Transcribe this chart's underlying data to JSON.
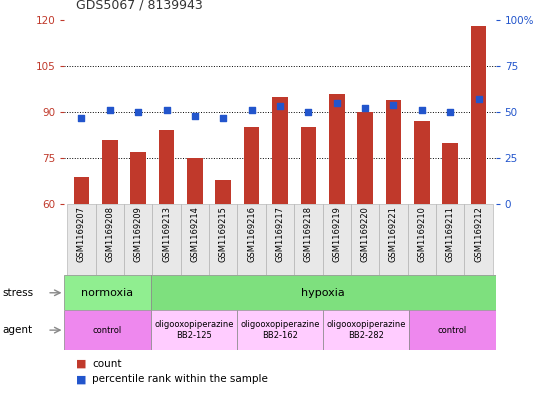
{
  "title": "GDS5067 / 8139943",
  "samples": [
    "GSM1169207",
    "GSM1169208",
    "GSM1169209",
    "GSM1169213",
    "GSM1169214",
    "GSM1169215",
    "GSM1169216",
    "GSM1169217",
    "GSM1169218",
    "GSM1169219",
    "GSM1169220",
    "GSM1169221",
    "GSM1169210",
    "GSM1169211",
    "GSM1169212"
  ],
  "counts": [
    69,
    81,
    77,
    84,
    75,
    68,
    85,
    95,
    85,
    96,
    90,
    94,
    87,
    80,
    118
  ],
  "percentiles": [
    47,
    51,
    50,
    51,
    48,
    47,
    51,
    53,
    50,
    55,
    52,
    54,
    51,
    50,
    57
  ],
  "ylim_left": [
    60,
    120
  ],
  "ylim_right": [
    0,
    100
  ],
  "yticks_left": [
    60,
    75,
    90,
    105,
    120
  ],
  "yticks_right": [
    0,
    25,
    50,
    75,
    100
  ],
  "bar_color": "#C0392B",
  "dot_color": "#2255CC",
  "stress_normoxia_color": "#90EE90",
  "stress_hypoxia_color": "#7EE07E",
  "agent_control_color": "#EE88EE",
  "agent_oligo_color": "#FFCCFF",
  "stress_groups": [
    {
      "label": "normoxia",
      "start": 0,
      "end": 3
    },
    {
      "label": "hypoxia",
      "start": 3,
      "end": 15
    }
  ],
  "agent_groups": [
    {
      "label": "control",
      "start": 0,
      "end": 3,
      "type": "control"
    },
    {
      "label": "oligooxopiperazine\nBB2-125",
      "start": 3,
      "end": 6,
      "type": "oligo"
    },
    {
      "label": "oligooxopiperazine\nBB2-162",
      "start": 6,
      "end": 9,
      "type": "oligo"
    },
    {
      "label": "oligooxopiperazine\nBB2-282",
      "start": 9,
      "end": 12,
      "type": "oligo"
    },
    {
      "label": "control",
      "start": 12,
      "end": 15,
      "type": "control"
    }
  ]
}
